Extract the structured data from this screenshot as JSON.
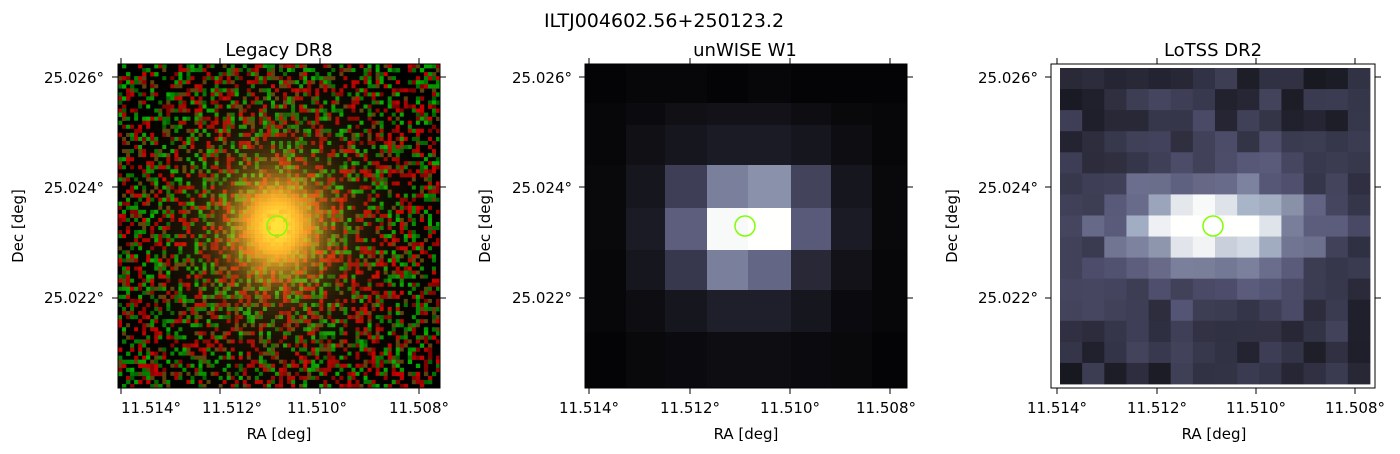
{
  "figure": {
    "title": "ILTJ004602.56+250123.2"
  },
  "marker": {
    "color": "#7fff00",
    "shape": "circle"
  },
  "panels": [
    {
      "id": "legacy",
      "title": "Legacy DR8",
      "xlabel": "RA [deg]",
      "ylabel": "Dec [deg]",
      "xticks": [
        "11.514°",
        "11.512°",
        "11.510°",
        "11.508°"
      ],
      "yticks": [
        "25.026°",
        "25.024°",
        "25.022°"
      ],
      "colormap": "rgb-composite"
    },
    {
      "id": "unwise",
      "title": "unWISE W1",
      "xlabel": "RA [deg]",
      "ylabel": "Dec [deg]",
      "xticks": [
        "11.514°",
        "11.512°",
        "11.510°",
        "11.508°"
      ],
      "yticks": [
        "25.026°",
        "25.024°",
        "25.022°"
      ],
      "colormap": "bone"
    },
    {
      "id": "lotss",
      "title": "LoTSS DR2",
      "xlabel": "RA [deg]",
      "ylabel": "Dec [deg]",
      "xticks": [
        "11.514°",
        "11.512°",
        "11.510°",
        "11.508°"
      ],
      "yticks": [
        "25.026°",
        "25.024°",
        "25.022°"
      ],
      "colormap": "bone"
    }
  ]
}
